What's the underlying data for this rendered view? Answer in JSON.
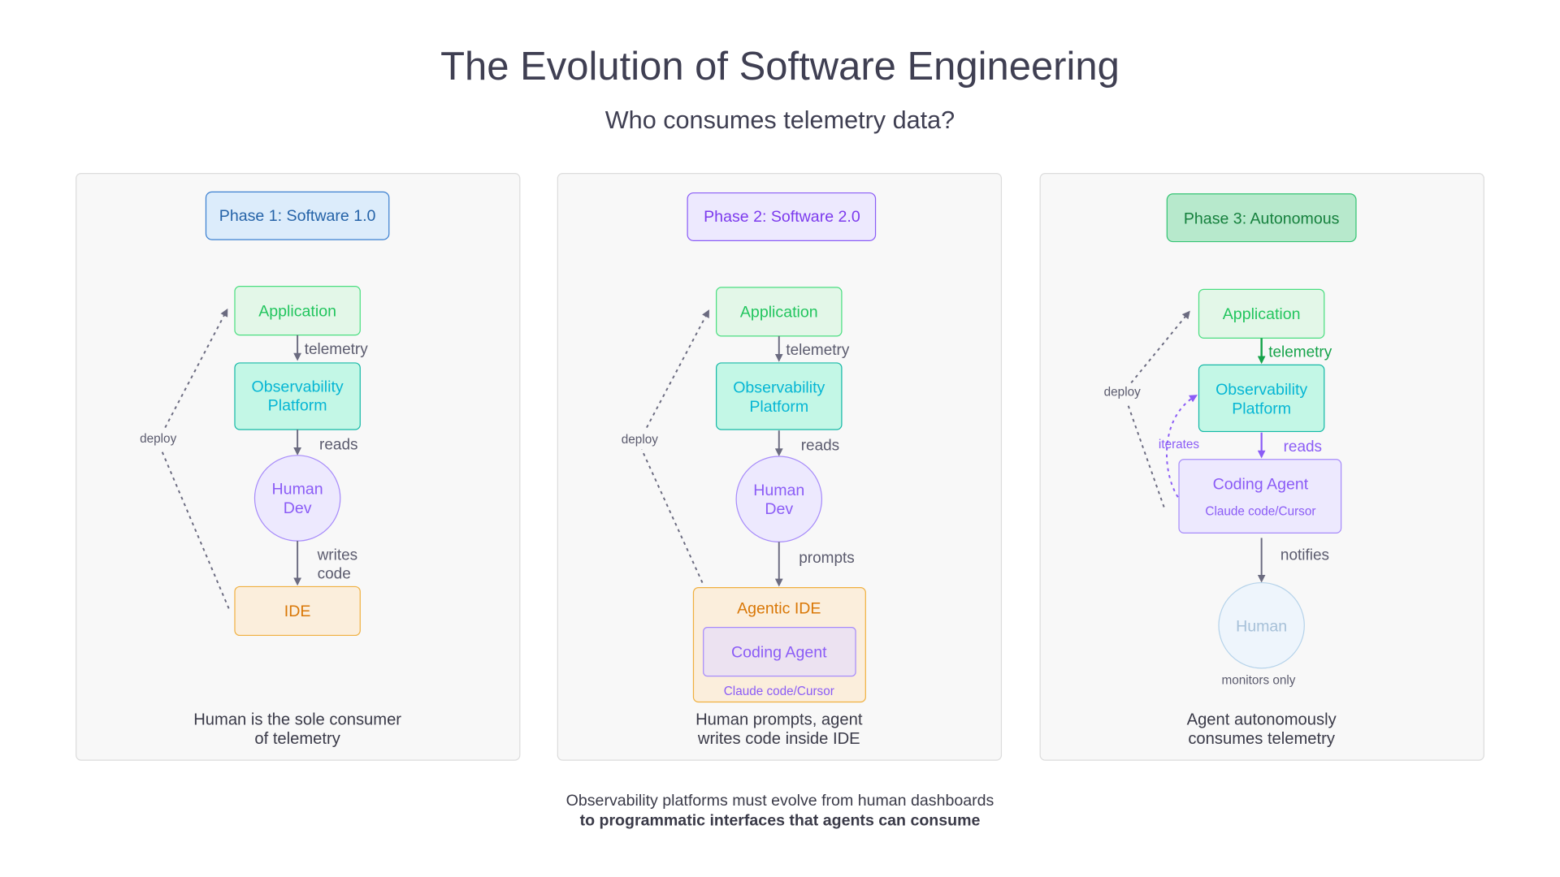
{
  "title": "The Evolution of Software Engineering",
  "subtitle": "Who consumes telemetry data?",
  "colors": {
    "text": "#3f3f52",
    "arrow": "#6b6b80",
    "application": "#22c55e",
    "observability": "#06b6d4",
    "human": "#8b5cf6",
    "ide": "#d97706",
    "agent": "#8b5cf6",
    "telemetry_phase3": "#16a34a"
  },
  "phases": [
    {
      "badge": "Phase 1: Software 1.0",
      "nodes": {
        "application": "Application",
        "observability": [
          "Observability",
          "Platform"
        ],
        "human": [
          "Human",
          "Dev"
        ],
        "ide": "IDE"
      },
      "edges": {
        "telemetry": "telemetry",
        "reads": "reads",
        "writes": [
          "writes",
          "code"
        ],
        "deploy": "deploy"
      },
      "caption": [
        "Human is the sole consumer",
        "of telemetry"
      ]
    },
    {
      "badge": "Phase 2: Software 2.0",
      "nodes": {
        "application": "Application",
        "observability": [
          "Observability",
          "Platform"
        ],
        "human": [
          "Human",
          "Dev"
        ],
        "ide": "Agentic IDE",
        "agent": "Coding Agent",
        "agent_sub": "Claude code/Cursor"
      },
      "edges": {
        "telemetry": "telemetry",
        "reads": "reads",
        "prompts": "prompts",
        "deploy": "deploy"
      },
      "caption": [
        "Human prompts, agent",
        "writes code inside IDE"
      ]
    },
    {
      "badge": "Phase 3: Autonomous",
      "nodes": {
        "application": "Application",
        "observability": [
          "Observability",
          "Platform"
        ],
        "agent": "Coding Agent",
        "agent_sub": "Claude code/Cursor",
        "human": "Human",
        "human_note": "monitors only"
      },
      "edges": {
        "telemetry": "telemetry",
        "reads": "reads",
        "notifies": "notifies",
        "iterates": "iterates",
        "deploy": "deploy"
      },
      "caption": [
        "Agent autonomously",
        "consumes telemetry"
      ]
    }
  ],
  "footer": {
    "line1": "Observability platforms must evolve from human dashboards",
    "line2": "to programmatic interfaces that agents can consume"
  }
}
